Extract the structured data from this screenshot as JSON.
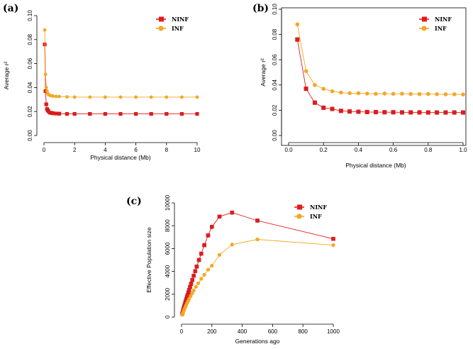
{
  "colors": {
    "ninf": "#e41a1c",
    "inf": "#f5a623",
    "axis": "#000000"
  },
  "chart_data": [
    {
      "panel": "(a)",
      "type": "line",
      "xlabel": "Physical distance (Mb)",
      "ylabel": "Average r²",
      "xlim": [
        0,
        10
      ],
      "ylim": [
        0,
        0.1
      ],
      "xticks": [
        0,
        2,
        4,
        6,
        8,
        10
      ],
      "xtick_labels": [
        "0",
        "2",
        "4",
        "6",
        "8",
        "10"
      ],
      "yticks": [
        0,
        0.02,
        0.04,
        0.06,
        0.08,
        0.1
      ],
      "ytick_labels": [
        "0.00",
        "0.02",
        "0.04",
        "0.06",
        "0.08",
        "0.10"
      ],
      "legend": [
        "NINF",
        "INF"
      ],
      "legend_position": "top-right",
      "series": [
        {
          "name": "NINF",
          "x": [
            0.05,
            0.1,
            0.15,
            0.2,
            0.25,
            0.3,
            0.4,
            0.5,
            0.6,
            0.8,
            1,
            1.5,
            2,
            3,
            4,
            5,
            6,
            7,
            8,
            9,
            10
          ],
          "y": [
            0.076,
            0.037,
            0.026,
            0.022,
            0.021,
            0.02,
            0.019,
            0.0188,
            0.0185,
            0.0183,
            0.0182,
            0.018,
            0.018,
            0.018,
            0.018,
            0.018,
            0.018,
            0.018,
            0.018,
            0.018,
            0.018
          ]
        },
        {
          "name": "INF",
          "x": [
            0.05,
            0.1,
            0.15,
            0.2,
            0.25,
            0.3,
            0.4,
            0.5,
            0.6,
            0.8,
            1,
            1.5,
            2,
            3,
            4,
            5,
            6,
            7,
            8,
            9,
            10
          ],
          "y": [
            0.088,
            0.051,
            0.04,
            0.037,
            0.035,
            0.034,
            0.0335,
            0.033,
            0.0328,
            0.0326,
            0.0325,
            0.0322,
            0.032,
            0.032,
            0.032,
            0.032,
            0.032,
            0.032,
            0.032,
            0.032,
            0.032
          ]
        }
      ]
    },
    {
      "panel": "(b)",
      "type": "line",
      "xlabel": "Physical distance (Mb)",
      "ylabel": "Average r²",
      "xlim": [
        0,
        1
      ],
      "ylim": [
        0,
        0.1
      ],
      "xticks": [
        0,
        0.2,
        0.4,
        0.6,
        0.8,
        1.0
      ],
      "xtick_labels": [
        "0.0",
        "0.2",
        "0.4",
        "0.6",
        "0.8",
        "1.0"
      ],
      "yticks": [
        0,
        0.02,
        0.04,
        0.06,
        0.08,
        0.1
      ],
      "ytick_labels": [
        "0.00",
        "0.02",
        "0.04",
        "0.06",
        "0.08",
        "0.10"
      ],
      "legend": [
        "NINF",
        "INF"
      ],
      "legend_position": "top-right",
      "series": [
        {
          "name": "NINF",
          "x": [
            0.05,
            0.1,
            0.15,
            0.2,
            0.25,
            0.3,
            0.35,
            0.4,
            0.45,
            0.5,
            0.55,
            0.6,
            0.65,
            0.7,
            0.75,
            0.8,
            0.85,
            0.9,
            0.95,
            1.0
          ],
          "y": [
            0.076,
            0.037,
            0.026,
            0.022,
            0.021,
            0.0195,
            0.019,
            0.0188,
            0.0186,
            0.0185,
            0.0184,
            0.0184,
            0.0183,
            0.0183,
            0.0183,
            0.0182,
            0.0182,
            0.0182,
            0.0182,
            0.0182
          ]
        },
        {
          "name": "INF",
          "x": [
            0.05,
            0.1,
            0.15,
            0.2,
            0.25,
            0.3,
            0.35,
            0.4,
            0.45,
            0.5,
            0.55,
            0.6,
            0.65,
            0.7,
            0.75,
            0.8,
            0.85,
            0.9,
            0.95,
            1.0
          ],
          "y": [
            0.088,
            0.051,
            0.04,
            0.037,
            0.035,
            0.034,
            0.0335,
            0.0335,
            0.0332,
            0.033,
            0.0332,
            0.033,
            0.0331,
            0.0329,
            0.0328,
            0.0329,
            0.0327,
            0.0326,
            0.0326,
            0.0325
          ]
        }
      ]
    },
    {
      "panel": "(c)",
      "type": "line",
      "xlabel": "Generations ago",
      "ylabel": "Effective Population size",
      "xlim": [
        0,
        1000
      ],
      "ylim": [
        0,
        10000
      ],
      "xticks": [
        0,
        200,
        400,
        600,
        800,
        1000
      ],
      "xtick_labels": [
        "0",
        "200",
        "400",
        "600",
        "800",
        "1000"
      ],
      "yticks": [
        0,
        2000,
        4000,
        6000,
        8000,
        10000
      ],
      "ytick_labels": [
        "0",
        "2000",
        "4000",
        "6000",
        "8000",
        "10000"
      ],
      "legend": [
        "NINF",
        "INF"
      ],
      "legend_position": "top-right",
      "series": [
        {
          "name": "NINF",
          "x": [
            5,
            8,
            11,
            14,
            17,
            20,
            24,
            28,
            32,
            36,
            40,
            45,
            50,
            56,
            63,
            71,
            80,
            90,
            100,
            115,
            130,
            150,
            175,
            200,
            250,
            333,
            500,
            1000
          ],
          "y": [
            300,
            450,
            600,
            750,
            900,
            1050,
            1220,
            1400,
            1580,
            1750,
            1930,
            2150,
            2370,
            2630,
            2920,
            3250,
            3620,
            4020,
            4420,
            5000,
            5550,
            6300,
            7150,
            7900,
            8800,
            9150,
            8450,
            6850
          ]
        },
        {
          "name": "INF",
          "x": [
            5,
            8,
            11,
            14,
            17,
            20,
            25,
            30,
            36,
            43,
            50,
            60,
            70,
            80,
            95,
            110,
            130,
            150,
            175,
            200,
            250,
            333,
            500,
            1000
          ],
          "y": [
            200,
            310,
            420,
            520,
            620,
            720,
            880,
            1030,
            1210,
            1400,
            1590,
            1840,
            2080,
            2320,
            2650,
            2960,
            3350,
            3700,
            4150,
            4500,
            5450,
            6350,
            6800,
            6300
          ]
        }
      ]
    }
  ]
}
